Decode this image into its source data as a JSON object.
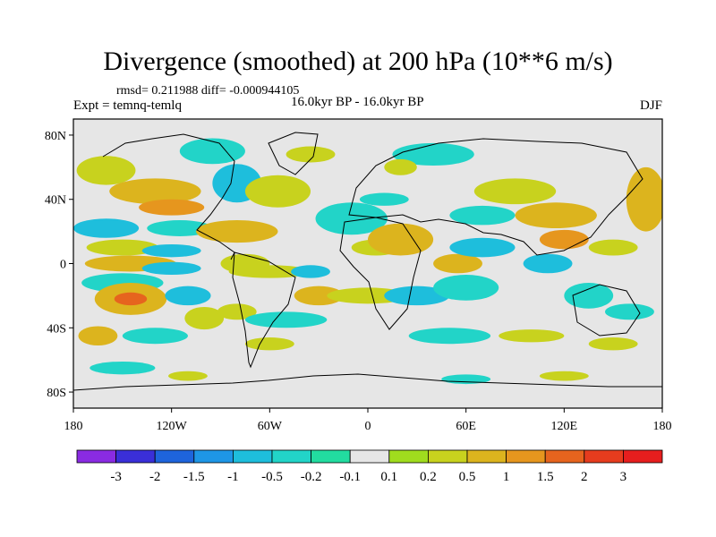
{
  "chart_data": {
    "type": "heatmap",
    "title": "Divergence (smoothed) at 200 hPa (10**6 m/s)",
    "stats": "rmsd= 0.211988 diff= -0.000944105",
    "experiment": "Expt = temnq-temlq",
    "subtitle": "16.0kyr BP - 16.0kyr BP",
    "season": "DJF",
    "xlabel": "",
    "ylabel": "",
    "x_ticks": [
      "180",
      "120W",
      "60W",
      "0",
      "60E",
      "120E",
      "180"
    ],
    "y_ticks": [
      "80N",
      "40N",
      "0",
      "40S",
      "80S"
    ],
    "xlim": [
      -180,
      180
    ],
    "ylim": [
      -90,
      90
    ],
    "colorbar": {
      "labels": [
        "-3",
        "-2",
        "-1.5",
        "-1",
        "-0.5",
        "-0.2",
        "-0.1",
        "0.1",
        "0.2",
        "0.5",
        "1",
        "1.5",
        "2",
        "3"
      ],
      "colors": [
        "#8a2be2",
        "#3a2fd8",
        "#1e64dc",
        "#1e96e6",
        "#1ebedc",
        "#22d4c8",
        "#22dca0",
        "#e6e6e6",
        "#a0dc1e",
        "#c8d21e",
        "#dcb41e",
        "#e6961e",
        "#e6641e",
        "#e63c1e",
        "#e61e1e"
      ]
    },
    "regions": [
      {
        "lon": -160,
        "lat": 58,
        "rx": 18,
        "ry": 9,
        "level": "0.2"
      },
      {
        "lon": -130,
        "lat": 45,
        "rx": 28,
        "ry": 8,
        "level": "0.5"
      },
      {
        "lon": -120,
        "lat": 35,
        "rx": 20,
        "ry": 5,
        "level": "1"
      },
      {
        "lon": -160,
        "lat": 22,
        "rx": 20,
        "ry": 6,
        "level": "-0.5"
      },
      {
        "lon": -115,
        "lat": 22,
        "rx": 20,
        "ry": 5,
        "level": "-0.2"
      },
      {
        "lon": -150,
        "lat": 10,
        "rx": 22,
        "ry": 5,
        "level": "0.2"
      },
      {
        "lon": -120,
        "lat": 8,
        "rx": 18,
        "ry": 4,
        "level": "-0.5"
      },
      {
        "lon": -145,
        "lat": 0,
        "rx": 28,
        "ry": 5,
        "level": "0.5"
      },
      {
        "lon": -120,
        "lat": -3,
        "rx": 18,
        "ry": 4,
        "level": "-0.5"
      },
      {
        "lon": -150,
        "lat": -12,
        "rx": 25,
        "ry": 6,
        "level": "-0.2"
      },
      {
        "lon": -145,
        "lat": -22,
        "rx": 22,
        "ry": 10,
        "level": "0.5"
      },
      {
        "lon": -145,
        "lat": -22,
        "rx": 10,
        "ry": 4,
        "level": "1.5"
      },
      {
        "lon": -110,
        "lat": -20,
        "rx": 14,
        "ry": 6,
        "level": "-0.5"
      },
      {
        "lon": -165,
        "lat": -45,
        "rx": 12,
        "ry": 6,
        "level": "0.5"
      },
      {
        "lon": -130,
        "lat": -45,
        "rx": 20,
        "ry": 5,
        "level": "-0.2"
      },
      {
        "lon": -100,
        "lat": -34,
        "rx": 12,
        "ry": 7,
        "level": "0.2"
      },
      {
        "lon": -95,
        "lat": 70,
        "rx": 20,
        "ry": 8,
        "level": "-0.2"
      },
      {
        "lon": -80,
        "lat": 50,
        "rx": 15,
        "ry": 12,
        "level": "-0.5"
      },
      {
        "lon": -55,
        "lat": 45,
        "rx": 20,
        "ry": 10,
        "level": "0.2"
      },
      {
        "lon": -35,
        "lat": 68,
        "rx": 15,
        "ry": 5,
        "level": "0.2"
      },
      {
        "lon": -80,
        "lat": 20,
        "rx": 25,
        "ry": 7,
        "level": "0.5"
      },
      {
        "lon": -75,
        "lat": 0,
        "rx": 15,
        "ry": 6,
        "level": "0.2"
      },
      {
        "lon": -60,
        "lat": -5,
        "rx": 25,
        "ry": 4,
        "level": "0.2"
      },
      {
        "lon": -35,
        "lat": -5,
        "rx": 12,
        "ry": 4,
        "level": "-0.5"
      },
      {
        "lon": -80,
        "lat": -30,
        "rx": 12,
        "ry": 5,
        "level": "0.2"
      },
      {
        "lon": -50,
        "lat": -35,
        "rx": 25,
        "ry": 5,
        "level": "-0.2"
      },
      {
        "lon": -30,
        "lat": -20,
        "rx": 15,
        "ry": 6,
        "level": "0.5"
      },
      {
        "lon": -60,
        "lat": -50,
        "rx": 15,
        "ry": 4,
        "level": "0.2"
      },
      {
        "lon": -10,
        "lat": 28,
        "rx": 22,
        "ry": 10,
        "level": "-0.2"
      },
      {
        "lon": 5,
        "lat": 10,
        "rx": 15,
        "ry": 5,
        "level": "0.2"
      },
      {
        "lon": 10,
        "lat": 40,
        "rx": 15,
        "ry": 4,
        "level": "-0.2"
      },
      {
        "lon": 20,
        "lat": 15,
        "rx": 20,
        "ry": 10,
        "level": "0.5"
      },
      {
        "lon": 0,
        "lat": -20,
        "rx": 25,
        "ry": 5,
        "level": "0.2"
      },
      {
        "lon": 30,
        "lat": -20,
        "rx": 20,
        "ry": 6,
        "level": "-0.5"
      },
      {
        "lon": 55,
        "lat": 0,
        "rx": 15,
        "ry": 6,
        "level": "0.5"
      },
      {
        "lon": 60,
        "lat": -15,
        "rx": 20,
        "ry": 8,
        "level": "-0.2"
      },
      {
        "lon": 70,
        "lat": 10,
        "rx": 20,
        "ry": 6,
        "level": "-0.5"
      },
      {
        "lon": 40,
        "lat": 68,
        "rx": 25,
        "ry": 7,
        "level": "-0.2"
      },
      {
        "lon": 20,
        "lat": 60,
        "rx": 10,
        "ry": 5,
        "level": "0.2"
      },
      {
        "lon": 90,
        "lat": 45,
        "rx": 25,
        "ry": 8,
        "level": "0.2"
      },
      {
        "lon": 70,
        "lat": 30,
        "rx": 20,
        "ry": 6,
        "level": "-0.2"
      },
      {
        "lon": 115,
        "lat": 30,
        "rx": 25,
        "ry": 8,
        "level": "0.5"
      },
      {
        "lon": 120,
        "lat": 15,
        "rx": 15,
        "ry": 6,
        "level": "1"
      },
      {
        "lon": 110,
        "lat": 0,
        "rx": 15,
        "ry": 6,
        "level": "-0.5"
      },
      {
        "lon": 135,
        "lat": -20,
        "rx": 15,
        "ry": 8,
        "level": "-0.2"
      },
      {
        "lon": 150,
        "lat": 10,
        "rx": 15,
        "ry": 5,
        "level": "0.2"
      },
      {
        "lon": 170,
        "lat": 40,
        "rx": 12,
        "ry": 20,
        "level": "0.5"
      },
      {
        "lon": 160,
        "lat": -30,
        "rx": 15,
        "ry": 5,
        "level": "-0.2"
      },
      {
        "lon": 50,
        "lat": -45,
        "rx": 25,
        "ry": 5,
        "level": "-0.2"
      },
      {
        "lon": 100,
        "lat": -45,
        "rx": 20,
        "ry": 4,
        "level": "0.2"
      },
      {
        "lon": 150,
        "lat": -50,
        "rx": 15,
        "ry": 4,
        "level": "0.2"
      },
      {
        "lon": -150,
        "lat": -65,
        "rx": 20,
        "ry": 4,
        "level": "-0.2"
      },
      {
        "lon": -110,
        "lat": -70,
        "rx": 12,
        "ry": 3,
        "level": "0.2"
      },
      {
        "lon": 60,
        "lat": -72,
        "rx": 15,
        "ry": 3,
        "level": "-0.2"
      },
      {
        "lon": 120,
        "lat": -70,
        "rx": 15,
        "ry": 3,
        "level": "0.2"
      }
    ]
  }
}
